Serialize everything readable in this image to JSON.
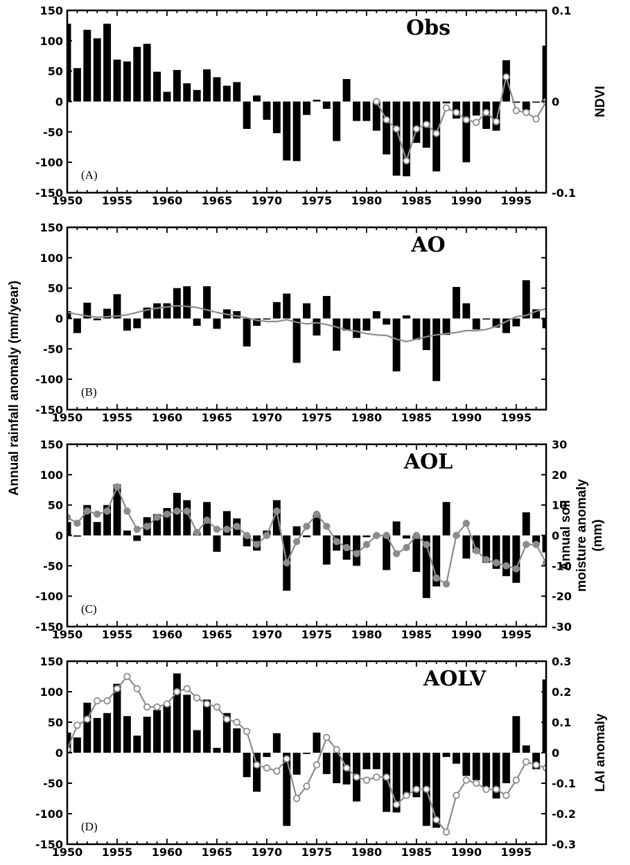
{
  "figure": {
    "left_axis_label": "Annual rainfall anomaly (mm/year)"
  },
  "chart_data": [
    {
      "type": "bar",
      "title": "Obs",
      "panel_label": "(A)",
      "x_start": 1950,
      "x_ticks": [
        1950,
        1955,
        1960,
        1965,
        1970,
        1975,
        1980,
        1985,
        1990,
        1995
      ],
      "xlim": [
        1950,
        1998
      ],
      "ylim": [
        -150,
        150
      ],
      "yticks": [
        -150,
        -100,
        -50,
        0,
        50,
        100,
        150
      ],
      "series": [
        {
          "values": [
            128,
            55,
            118,
            104,
            128,
            69,
            66,
            90,
            95,
            49,
            16,
            52,
            30,
            19,
            53,
            40,
            26,
            32,
            -45,
            10,
            -30,
            -52,
            -97,
            -98,
            -22,
            3,
            -12,
            -65,
            37,
            -32,
            -32,
            -48,
            -87,
            -122,
            -123,
            -68,
            -76,
            -115,
            -3,
            -28,
            -100,
            -23,
            -45,
            -48,
            68,
            -2,
            -14,
            0,
            92
          ]
        }
      ],
      "secondary_axis": {
        "label": "NDVI",
        "ylim": [
          -0.1,
          0.1
        ],
        "yticks": [
          -0.1,
          0,
          0.1
        ],
        "tick_labels": [
          "-0.1",
          "0",
          "0.1"
        ]
      },
      "secondary_series": {
        "style": "open-markers",
        "x": [
          1981,
          1982,
          1983,
          1984,
          1985,
          1986,
          1987,
          1988,
          1989,
          1990,
          1991,
          1992,
          1993,
          1994,
          1995,
          1996,
          1997,
          1998
        ],
        "values": [
          0.0,
          -0.02,
          -0.03,
          -0.065,
          -0.03,
          -0.025,
          -0.035,
          -0.007,
          -0.012,
          -0.02,
          -0.023,
          -0.012,
          -0.022,
          0.027,
          -0.01,
          -0.012,
          -0.019,
          0.0
        ]
      }
    },
    {
      "type": "bar",
      "title": "AO",
      "panel_label": "(B)",
      "x_start": 1950,
      "x_ticks": [
        1950,
        1955,
        1960,
        1965,
        1970,
        1975,
        1980,
        1985,
        1990,
        1995
      ],
      "xlim": [
        1950,
        1998
      ],
      "ylim": [
        -150,
        150
      ],
      "yticks": [
        -150,
        -100,
        -50,
        0,
        50,
        100,
        150
      ],
      "series": [
        {
          "values": [
            12,
            -24,
            26,
            -3,
            16,
            40,
            -20,
            -16,
            18,
            25,
            25,
            50,
            53,
            -12,
            53,
            -17,
            15,
            12,
            -46,
            -12,
            0,
            27,
            41,
            -73,
            25,
            -28,
            37,
            -53,
            -20,
            -32,
            -20,
            12,
            -10,
            -87,
            5,
            -35,
            -52,
            -103,
            -27,
            52,
            25,
            -18,
            0,
            -15,
            -24,
            -13,
            63,
            15,
            -16,
            127
          ]
        }
      ],
      "secondary_series": {
        "style": "line",
        "x_start": 1949,
        "values": [
          5,
          10,
          7,
          4,
          2,
          3,
          4,
          6,
          10,
          14,
          17,
          19,
          21,
          20,
          18,
          14,
          10,
          7,
          4,
          1,
          -3,
          -5,
          -5,
          -2,
          -6,
          -9,
          -7,
          -10,
          -14,
          -19,
          -21,
          -25,
          -27,
          -28,
          -34,
          -38,
          -34,
          -30,
          -27,
          -25,
          -23,
          -20,
          -20,
          -18,
          -13,
          -5,
          3,
          5,
          12,
          16,
          20,
          25,
          32,
          35
        ]
      }
    },
    {
      "type": "bar",
      "title": "AOL",
      "panel_label": "(C)",
      "x_start": 1950,
      "x_ticks": [
        1950,
        1955,
        1960,
        1965,
        1970,
        1975,
        1980,
        1985,
        1990,
        1995
      ],
      "xlim": [
        1950,
        1998
      ],
      "ylim": [
        -150,
        150
      ],
      "yticks": [
        -150,
        -100,
        -50,
        0,
        50,
        100,
        150
      ],
      "series": [
        {
          "values": [
            22,
            -2,
            50,
            22,
            50,
            84,
            8,
            -9,
            30,
            35,
            45,
            70,
            58,
            5,
            55,
            -27,
            40,
            28,
            -18,
            -25,
            8,
            58,
            -91,
            15,
            -3,
            34,
            -48,
            -25,
            -40,
            -50,
            -3,
            -2,
            -57,
            23,
            -5,
            -60,
            -103,
            -84,
            55,
            0,
            -38,
            -28,
            -45,
            -55,
            -67,
            -78,
            38,
            -12,
            -28,
            107
          ]
        }
      ],
      "secondary_axis": {
        "label": "Annual soil moisture anomaly (mm)",
        "label_lines": [
          "Annual soil",
          "moisture anomaly",
          "(mm)"
        ],
        "ylim": [
          -30,
          30
        ],
        "yticks": [
          -30,
          -20,
          -10,
          0,
          10,
          20,
          30
        ],
        "tick_labels": [
          "-30",
          "-20",
          "-10",
          "0",
          "10",
          "20",
          "30"
        ]
      },
      "secondary_series": {
        "style": "filled-markers",
        "x_start": 1950,
        "values": [
          6,
          4,
          8,
          7,
          8,
          16,
          8,
          2,
          3,
          6,
          7,
          8,
          8,
          1,
          5,
          2,
          2,
          3,
          0,
          -3,
          0,
          8,
          -9,
          -2,
          3,
          7,
          3,
          -2,
          -4,
          -6,
          -3,
          0,
          0,
          -6,
          -4,
          0,
          -3,
          -14,
          -16,
          0,
          4,
          -5,
          -8,
          -9,
          -10,
          -11,
          -3,
          -3,
          -9,
          0
        ]
      }
    },
    {
      "type": "bar",
      "title": "AOLV",
      "panel_label": "(D)",
      "x_start": 1950,
      "x_ticks": [
        1950,
        1955,
        1960,
        1965,
        1970,
        1975,
        1980,
        1985,
        1990,
        1995
      ],
      "xlim": [
        1950,
        1998
      ],
      "ylim": [
        -150,
        150
      ],
      "yticks": [
        -150,
        -100,
        -50,
        0,
        50,
        100,
        150
      ],
      "series": [
        {
          "values": [
            33,
            25,
            82,
            57,
            65,
            113,
            60,
            28,
            59,
            70,
            77,
            130,
            95,
            37,
            87,
            8,
            65,
            40,
            -40,
            -64,
            -7,
            32,
            -120,
            -36,
            -2,
            33,
            -35,
            -50,
            -52,
            -80,
            -27,
            -27,
            -97,
            -98,
            -70,
            -73,
            -120,
            -123,
            -7,
            -18,
            -38,
            -45,
            -57,
            -75,
            -50,
            60,
            12,
            -27,
            120
          ]
        }
      ],
      "secondary_axis": {
        "label": "LAI anomaly",
        "ylim": [
          -0.3,
          0.3
        ],
        "yticks": [
          -0.3,
          -0.2,
          -0.1,
          0,
          0.1,
          0.2,
          0.3
        ],
        "tick_labels": [
          "-0.3",
          "-0.2",
          "-0.1",
          "0",
          "0.1",
          "0.2",
          "0.3"
        ]
      },
      "secondary_series": {
        "style": "open-markers",
        "x_start": 1950,
        "values": [
          0.01,
          0.09,
          0.11,
          0.17,
          0.17,
          0.21,
          0.25,
          0.21,
          0.15,
          0.15,
          0.16,
          0.2,
          0.21,
          0.18,
          0.16,
          0.15,
          0.11,
          0.1,
          0.07,
          -0.04,
          -0.05,
          -0.06,
          -0.02,
          -0.15,
          -0.11,
          -0.04,
          0.05,
          0.01,
          -0.05,
          -0.08,
          -0.09,
          -0.08,
          -0.08,
          -0.17,
          -0.14,
          -0.12,
          -0.12,
          -0.22,
          -0.26,
          -0.14,
          -0.09,
          -0.1,
          -0.12,
          -0.12,
          -0.14,
          -0.09,
          -0.03,
          -0.04,
          -0.05
        ]
      }
    }
  ]
}
